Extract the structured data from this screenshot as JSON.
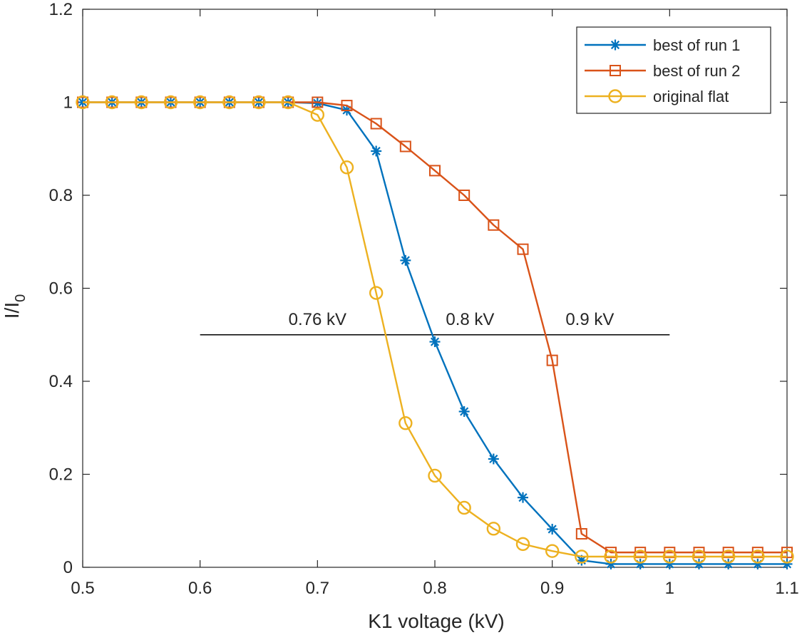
{
  "chart_data": {
    "type": "line",
    "title": "",
    "xlabel": "K1 voltage (kV)",
    "ylabel": "I/I",
    "ylabel_subscript": "0",
    "xlim": [
      0.5,
      1.1
    ],
    "ylim": [
      0,
      1.2
    ],
    "xticks": [
      0.5,
      0.6,
      0.7,
      0.8,
      0.9,
      1.0,
      1.1
    ],
    "xtick_labels": [
      "0.5",
      "0.6",
      "0.7",
      "0.8",
      "0.9",
      "1",
      "1.1"
    ],
    "yticks": [
      0,
      0.2,
      0.4,
      0.6,
      0.8,
      1.0,
      1.2
    ],
    "ytick_labels": [
      "0",
      "0.2",
      "0.4",
      "0.6",
      "0.8",
      "1",
      "1.2"
    ],
    "grid": false,
    "legend_position": "top-right",
    "x": [
      0.5,
      0.525,
      0.55,
      0.575,
      0.6,
      0.625,
      0.65,
      0.675,
      0.7,
      0.725,
      0.75,
      0.775,
      0.8,
      0.825,
      0.85,
      0.875,
      0.9,
      0.925,
      0.95,
      0.975,
      1.0,
      1.025,
      1.05,
      1.075,
      1.1
    ],
    "series": [
      {
        "name": "best of run 1",
        "color": "#0072BD",
        "marker": "asterisk",
        "values": [
          1,
          1,
          1,
          1,
          1,
          1,
          1,
          1,
          0.998,
          0.983,
          0.895,
          0.66,
          0.485,
          0.335,
          0.233,
          0.15,
          0.082,
          0.015,
          0.007,
          0.007,
          0.007,
          0.007,
          0.007,
          0.007,
          0.007
        ]
      },
      {
        "name": "best of run 2",
        "color": "#D95319",
        "marker": "square",
        "values": [
          1,
          1,
          1,
          1,
          1,
          1,
          1,
          1,
          1,
          0.993,
          0.954,
          0.905,
          0.853,
          0.8,
          0.736,
          0.684,
          0.445,
          0.072,
          0.032,
          0.032,
          0.032,
          0.032,
          0.032,
          0.032,
          0.032
        ]
      },
      {
        "name": "original flat",
        "color": "#EDB120",
        "marker": "circle",
        "values": [
          1,
          1,
          1,
          1,
          1,
          1,
          1,
          1,
          0.973,
          0.86,
          0.59,
          0.31,
          0.197,
          0.128,
          0.083,
          0.05,
          0.035,
          0.023,
          0.023,
          0.023,
          0.023,
          0.023,
          0.023,
          0.023,
          0.023
        ]
      }
    ],
    "reference_line": {
      "y": 0.5,
      "x_start": 0.6,
      "x_end": 1.0,
      "color": "#000000"
    },
    "annotations": [
      {
        "text": "0.76 kV",
        "x": 0.7,
        "y": 0.5
      },
      {
        "text": "0.8 kV",
        "x": 0.83,
        "y": 0.5
      },
      {
        "text": "0.9 kV",
        "x": 0.932,
        "y": 0.5
      }
    ]
  }
}
